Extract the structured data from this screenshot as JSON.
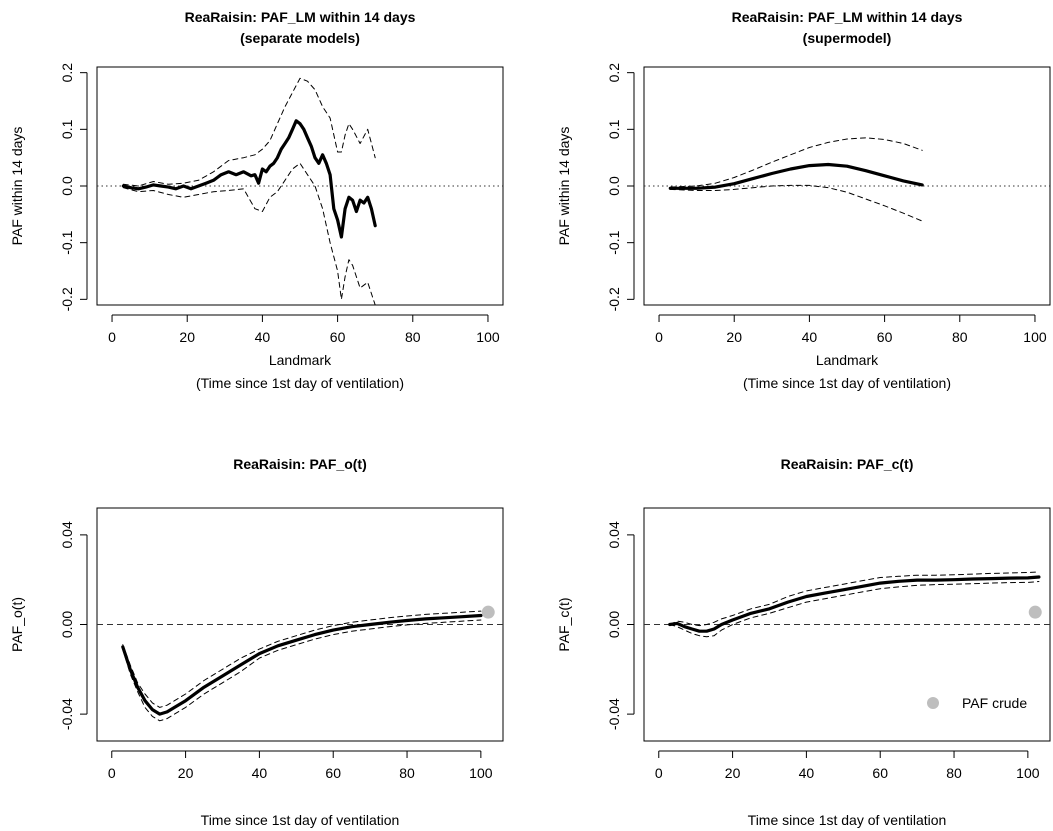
{
  "chart_data": [
    {
      "type": "line",
      "title": "ReaRaisin: PAF_LM within 14 days",
      "subtitle": "(separate models)",
      "xlabel": "Landmark",
      "xlabel2": "(Time since 1st day of ventilation)",
      "ylabel": "PAF within 14 days",
      "xlim": [
        -4,
        104
      ],
      "ylim": [
        -0.21,
        0.21
      ],
      "xticks": [
        0,
        20,
        40,
        60,
        80,
        100
      ],
      "xtick_labels": [
        "0",
        "20",
        "40",
        "60",
        "80",
        "100"
      ],
      "yticks": [
        -0.2,
        -0.1,
        0.0,
        0.1,
        0.2
      ],
      "ytick_labels": [
        "-0.2",
        "-0.1",
        "0.0",
        "0.1",
        "0.2"
      ],
      "yticks_rotated": true,
      "reference_line": {
        "y": 0,
        "style": "dotted"
      },
      "series": [
        {
          "style": "solid-thick",
          "x": [
            3,
            5,
            7,
            9,
            11,
            13,
            15,
            17,
            19,
            21,
            23,
            25,
            27,
            28,
            29,
            31,
            33,
            35,
            37,
            38,
            39,
            40,
            41,
            42,
            43,
            44,
            45,
            46,
            47,
            48,
            49,
            50,
            51,
            52,
            53,
            54,
            55,
            56,
            57,
            58,
            59,
            60,
            61,
            62,
            63,
            64,
            65,
            66,
            67,
            68,
            69,
            70
          ],
          "y": [
            0,
            -0.003,
            -0.005,
            -0.002,
            0.002,
            0,
            -0.002,
            -0.005,
            0,
            -0.005,
            0,
            0.005,
            0.01,
            0.015,
            0.02,
            0.025,
            0.02,
            0.025,
            0.018,
            0.02,
            0.005,
            0.03,
            0.025,
            0.035,
            0.04,
            0.05,
            0.065,
            0.075,
            0.085,
            0.1,
            0.115,
            0.11,
            0.1,
            0.085,
            0.07,
            0.05,
            0.04,
            0.055,
            0.04,
            0.02,
            -0.04,
            -0.06,
            -0.09,
            -0.04,
            -0.02,
            -0.025,
            -0.045,
            -0.025,
            -0.03,
            -0.02,
            -0.04,
            -0.07
          ]
        },
        {
          "style": "dashed",
          "x": [
            3,
            7,
            11,
            15,
            19,
            23,
            27,
            31,
            35,
            38,
            40,
            42,
            44,
            46,
            48,
            50,
            52,
            54,
            56,
            58,
            60,
            61,
            62,
            63,
            64,
            66,
            68,
            70
          ],
          "y": [
            0.003,
            0,
            0.008,
            0.003,
            0.005,
            0.01,
            0.025,
            0.045,
            0.05,
            0.055,
            0.065,
            0.08,
            0.11,
            0.14,
            0.165,
            0.19,
            0.185,
            0.17,
            0.14,
            0.12,
            0.06,
            0.06,
            0.09,
            0.11,
            0.1,
            0.075,
            0.1,
            0.05
          ]
        },
        {
          "style": "dashed",
          "x": [
            3,
            7,
            11,
            15,
            19,
            23,
            27,
            31,
            35,
            38,
            40,
            42,
            44,
            46,
            48,
            50,
            52,
            54,
            56,
            58,
            60,
            61,
            62,
            63,
            64,
            66,
            68,
            70
          ],
          "y": [
            -0.003,
            -0.01,
            -0.008,
            -0.015,
            -0.02,
            -0.015,
            -0.01,
            -0.008,
            -0.005,
            -0.04,
            -0.045,
            -0.02,
            -0.01,
            0.01,
            0.03,
            0.04,
            0.02,
            0.0,
            -0.04,
            -0.1,
            -0.15,
            -0.2,
            -0.16,
            -0.13,
            -0.14,
            -0.18,
            -0.17,
            -0.21
          ]
        }
      ]
    },
    {
      "type": "line",
      "title": "ReaRaisin: PAF_LM within 14 days",
      "subtitle": "(supermodel)",
      "xlabel": "Landmark",
      "xlabel2": "(Time since 1st day of ventilation)",
      "ylabel": "PAF within 14 days",
      "xlim": [
        -4,
        104
      ],
      "ylim": [
        -0.21,
        0.21
      ],
      "xticks": [
        0,
        20,
        40,
        60,
        80,
        100
      ],
      "xtick_labels": [
        "0",
        "20",
        "40",
        "60",
        "80",
        "100"
      ],
      "yticks": [
        -0.2,
        -0.1,
        0.0,
        0.1,
        0.2
      ],
      "ytick_labels": [
        "-0.2",
        "-0.1",
        "0.0",
        "0.1",
        "0.2"
      ],
      "yticks_rotated": true,
      "reference_line": {
        "y": 0,
        "style": "dotted"
      },
      "series": [
        {
          "style": "solid-thick",
          "x": [
            3,
            10,
            15,
            20,
            25,
            30,
            35,
            40,
            45,
            50,
            55,
            60,
            65,
            70
          ],
          "y": [
            -0.004,
            -0.004,
            -0.002,
            0.004,
            0.013,
            0.022,
            0.03,
            0.036,
            0.038,
            0.035,
            0.027,
            0.018,
            0.009,
            0.002
          ]
        },
        {
          "style": "dashed",
          "x": [
            3,
            10,
            15,
            20,
            25,
            30,
            35,
            40,
            45,
            50,
            55,
            60,
            65,
            70
          ],
          "y": [
            -0.002,
            0.0,
            0.005,
            0.015,
            0.028,
            0.042,
            0.055,
            0.068,
            0.077,
            0.083,
            0.085,
            0.082,
            0.075,
            0.063
          ]
        },
        {
          "style": "dashed",
          "x": [
            3,
            10,
            15,
            20,
            25,
            30,
            35,
            40,
            45,
            50,
            55,
            60,
            65,
            70
          ],
          "y": [
            -0.006,
            -0.008,
            -0.008,
            -0.006,
            -0.003,
            0.0,
            0.001,
            0.001,
            -0.003,
            -0.011,
            -0.023,
            -0.035,
            -0.048,
            -0.062
          ]
        }
      ]
    },
    {
      "type": "line",
      "title": "ReaRaisin: PAF_o(t)",
      "subtitle": "",
      "xlabel": "Time since 1st day of ventilation",
      "xlabel2": "",
      "ylabel": "PAF_o(t)",
      "xlim": [
        -4,
        106
      ],
      "ylim": [
        -0.052,
        0.052
      ],
      "xticks": [
        0,
        20,
        40,
        60,
        80,
        100
      ],
      "xtick_labels": [
        "0",
        "20",
        "40",
        "60",
        "80",
        "100"
      ],
      "yticks": [
        -0.04,
        0.0,
        0.04
      ],
      "ytick_labels": [
        "-0.04",
        "0.00",
        "0.04"
      ],
      "yticks_rotated": true,
      "reference_line": {
        "y": 0,
        "style": "dashed"
      },
      "point": {
        "label": "PAF crude",
        "x": 102,
        "y": 0.0055,
        "color": "#bebebe"
      },
      "series": [
        {
          "style": "solid-thick",
          "x": [
            3,
            5,
            7,
            9,
            11,
            13,
            15,
            17,
            20,
            25,
            30,
            35,
            40,
            45,
            50,
            55,
            60,
            65,
            70,
            75,
            80,
            85,
            90,
            95,
            100
          ],
          "y": [
            -0.01,
            -0.02,
            -0.028,
            -0.034,
            -0.038,
            -0.04,
            -0.039,
            -0.037,
            -0.034,
            -0.028,
            -0.023,
            -0.018,
            -0.013,
            -0.0095,
            -0.007,
            -0.0045,
            -0.0025,
            -0.001,
            0.0,
            0.001,
            0.0018,
            0.0025,
            0.003,
            0.0035,
            0.004
          ]
        },
        {
          "style": "dashed",
          "x": [
            3,
            5,
            7,
            9,
            11,
            13,
            15,
            17,
            20,
            25,
            30,
            35,
            40,
            45,
            50,
            55,
            60,
            65,
            70,
            75,
            80,
            85,
            90,
            95,
            100
          ],
          "y": [
            -0.009,
            -0.018,
            -0.026,
            -0.031,
            -0.035,
            -0.037,
            -0.036,
            -0.034,
            -0.031,
            -0.025,
            -0.02,
            -0.015,
            -0.011,
            -0.0075,
            -0.005,
            -0.0025,
            -0.0005,
            0.001,
            0.002,
            0.003,
            0.0038,
            0.0045,
            0.005,
            0.0055,
            0.006
          ]
        },
        {
          "style": "dashed",
          "x": [
            3,
            5,
            7,
            9,
            11,
            13,
            15,
            17,
            20,
            25,
            30,
            35,
            40,
            45,
            50,
            55,
            60,
            65,
            70,
            75,
            80,
            85,
            90,
            95,
            100
          ],
          "y": [
            -0.011,
            -0.022,
            -0.03,
            -0.037,
            -0.041,
            -0.043,
            -0.042,
            -0.04,
            -0.037,
            -0.031,
            -0.026,
            -0.021,
            -0.015,
            -0.0115,
            -0.009,
            -0.0065,
            -0.0045,
            -0.003,
            -0.002,
            -0.001,
            -0.0002,
            0.0005,
            0.001,
            0.0015,
            0.002
          ]
        }
      ]
    },
    {
      "type": "line",
      "title": "ReaRaisin: PAF_c(t)",
      "subtitle": "",
      "xlabel": "Time since 1st day of ventilation",
      "xlabel2": "",
      "ylabel": "PAF_c(t)",
      "xlim": [
        -4,
        106
      ],
      "ylim": [
        -0.052,
        0.052
      ],
      "xticks": [
        0,
        20,
        40,
        60,
        80,
        100
      ],
      "xtick_labels": [
        "0",
        "20",
        "40",
        "60",
        "80",
        "100"
      ],
      "yticks": [
        -0.04,
        0.0,
        0.04
      ],
      "ytick_labels": [
        "-0.04",
        "0.00",
        "0.04"
      ],
      "yticks_rotated": true,
      "reference_line": {
        "y": 0,
        "style": "dashed"
      },
      "point": {
        "label": "PAF crude",
        "x": 102,
        "y": 0.0055,
        "color": "#bebebe"
      },
      "legend": {
        "label": "PAF crude",
        "placement": "bottom-right"
      },
      "series": [
        {
          "style": "solid-thick",
          "x": [
            3,
            5,
            7,
            9,
            11,
            13,
            15,
            17,
            20,
            25,
            30,
            35,
            40,
            45,
            50,
            55,
            60,
            65,
            70,
            75,
            80,
            85,
            90,
            95,
            100,
            103
          ],
          "y": [
            0,
            0.0005,
            -0.001,
            -0.002,
            -0.003,
            -0.003,
            -0.002,
            0.0,
            0.002,
            0.005,
            0.007,
            0.01,
            0.0125,
            0.014,
            0.0155,
            0.017,
            0.0185,
            0.0193,
            0.0198,
            0.0198,
            0.02,
            0.0203,
            0.0205,
            0.0207,
            0.0208,
            0.0212
          ]
        },
        {
          "style": "dashed",
          "x": [
            3,
            5,
            7,
            9,
            11,
            13,
            15,
            17,
            20,
            25,
            30,
            35,
            40,
            45,
            50,
            55,
            60,
            65,
            70,
            75,
            80,
            85,
            90,
            95,
            100,
            103
          ],
          "y": [
            0,
            0.0015,
            0.001,
            0.0,
            -0.0005,
            0.0,
            0.001,
            0.0025,
            0.004,
            0.007,
            0.009,
            0.0125,
            0.015,
            0.0165,
            0.018,
            0.0195,
            0.021,
            0.0215,
            0.022,
            0.022,
            0.0222,
            0.0225,
            0.0228,
            0.023,
            0.0232,
            0.0235
          ]
        },
        {
          "style": "dashed",
          "x": [
            3,
            5,
            7,
            9,
            11,
            13,
            15,
            17,
            20,
            25,
            30,
            35,
            40,
            45,
            50,
            55,
            60,
            65,
            70,
            75,
            80,
            85,
            90,
            95,
            100,
            103
          ],
          "y": [
            0,
            -0.001,
            -0.0025,
            -0.004,
            -0.005,
            -0.0055,
            -0.005,
            -0.0025,
            0.0,
            0.003,
            0.005,
            0.0075,
            0.01,
            0.0115,
            0.013,
            0.0145,
            0.016,
            0.0168,
            0.0175,
            0.0178,
            0.018,
            0.0182,
            0.0185,
            0.0187,
            0.0188,
            0.0192
          ]
        }
      ]
    }
  ]
}
